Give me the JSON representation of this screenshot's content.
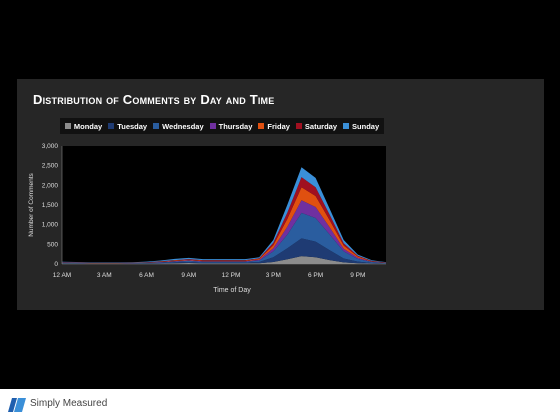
{
  "chart_data": {
    "type": "area",
    "stacked": true,
    "title": "Distribution of Comments by Day and Time",
    "xlabel": "Time of Day",
    "ylabel": "Number of Comments",
    "ylim": [
      0,
      3000
    ],
    "yticks": [
      "0",
      "500",
      "1,000",
      "1,500",
      "2,000",
      "2,500",
      "3,000"
    ],
    "x": [
      0,
      1,
      2,
      3,
      4,
      5,
      6,
      7,
      8,
      9,
      10,
      11,
      12,
      13,
      14,
      15,
      16,
      17,
      18,
      19,
      20,
      21,
      22,
      23
    ],
    "xtick_labels": [
      {
        "hour": 0,
        "label": "12 AM"
      },
      {
        "hour": 3,
        "label": "3 AM"
      },
      {
        "hour": 6,
        "label": "6 AM"
      },
      {
        "hour": 9,
        "label": "9 AM"
      },
      {
        "hour": 12,
        "label": "12 PM"
      },
      {
        "hour": 15,
        "label": "3 PM"
      },
      {
        "hour": 18,
        "label": "6 PM"
      },
      {
        "hour": 21,
        "label": "9 PM"
      }
    ],
    "grid": false,
    "legend": "top",
    "series": [
      {
        "name": "Monday",
        "color": "#8c8c8c",
        "values": [
          10,
          10,
          5,
          5,
          5,
          5,
          8,
          10,
          20,
          25,
          15,
          15,
          15,
          15,
          20,
          50,
          120,
          200,
          170,
          100,
          40,
          20,
          10,
          5
        ]
      },
      {
        "name": "Tuesday",
        "color": "#1f3b73",
        "values": [
          10,
          8,
          5,
          5,
          5,
          8,
          10,
          15,
          20,
          25,
          20,
          20,
          20,
          20,
          30,
          120,
          280,
          450,
          400,
          250,
          100,
          40,
          15,
          8
        ]
      },
      {
        "name": "Wednesday",
        "color": "#2a5d9f",
        "values": [
          10,
          8,
          5,
          5,
          5,
          8,
          10,
          15,
          20,
          30,
          20,
          20,
          20,
          20,
          40,
          150,
          350,
          650,
          600,
          400,
          180,
          70,
          25,
          10
        ]
      },
      {
        "name": "Thursday",
        "color": "#7030a0",
        "values": [
          8,
          5,
          5,
          5,
          5,
          5,
          8,
          10,
          15,
          15,
          15,
          15,
          15,
          15,
          20,
          80,
          200,
          320,
          280,
          180,
          70,
          30,
          10,
          5
        ]
      },
      {
        "name": "Friday",
        "color": "#e05010",
        "values": [
          5,
          5,
          5,
          5,
          5,
          5,
          5,
          10,
          15,
          15,
          15,
          15,
          15,
          15,
          20,
          80,
          200,
          330,
          280,
          180,
          80,
          30,
          10,
          5
        ]
      },
      {
        "name": "Saturday",
        "color": "#a01020",
        "values": [
          5,
          5,
          5,
          5,
          5,
          5,
          5,
          10,
          10,
          15,
          15,
          15,
          15,
          15,
          15,
          60,
          160,
          260,
          220,
          140,
          60,
          20,
          8,
          5
        ]
      },
      {
        "name": "Sunday",
        "color": "#3a8fd8",
        "values": [
          10,
          10,
          10,
          10,
          10,
          10,
          15,
          20,
          30,
          30,
          25,
          25,
          25,
          25,
          25,
          70,
          200,
          250,
          240,
          150,
          80,
          30,
          15,
          10
        ]
      }
    ]
  },
  "footer": {
    "brand": "Simply Measured"
  }
}
